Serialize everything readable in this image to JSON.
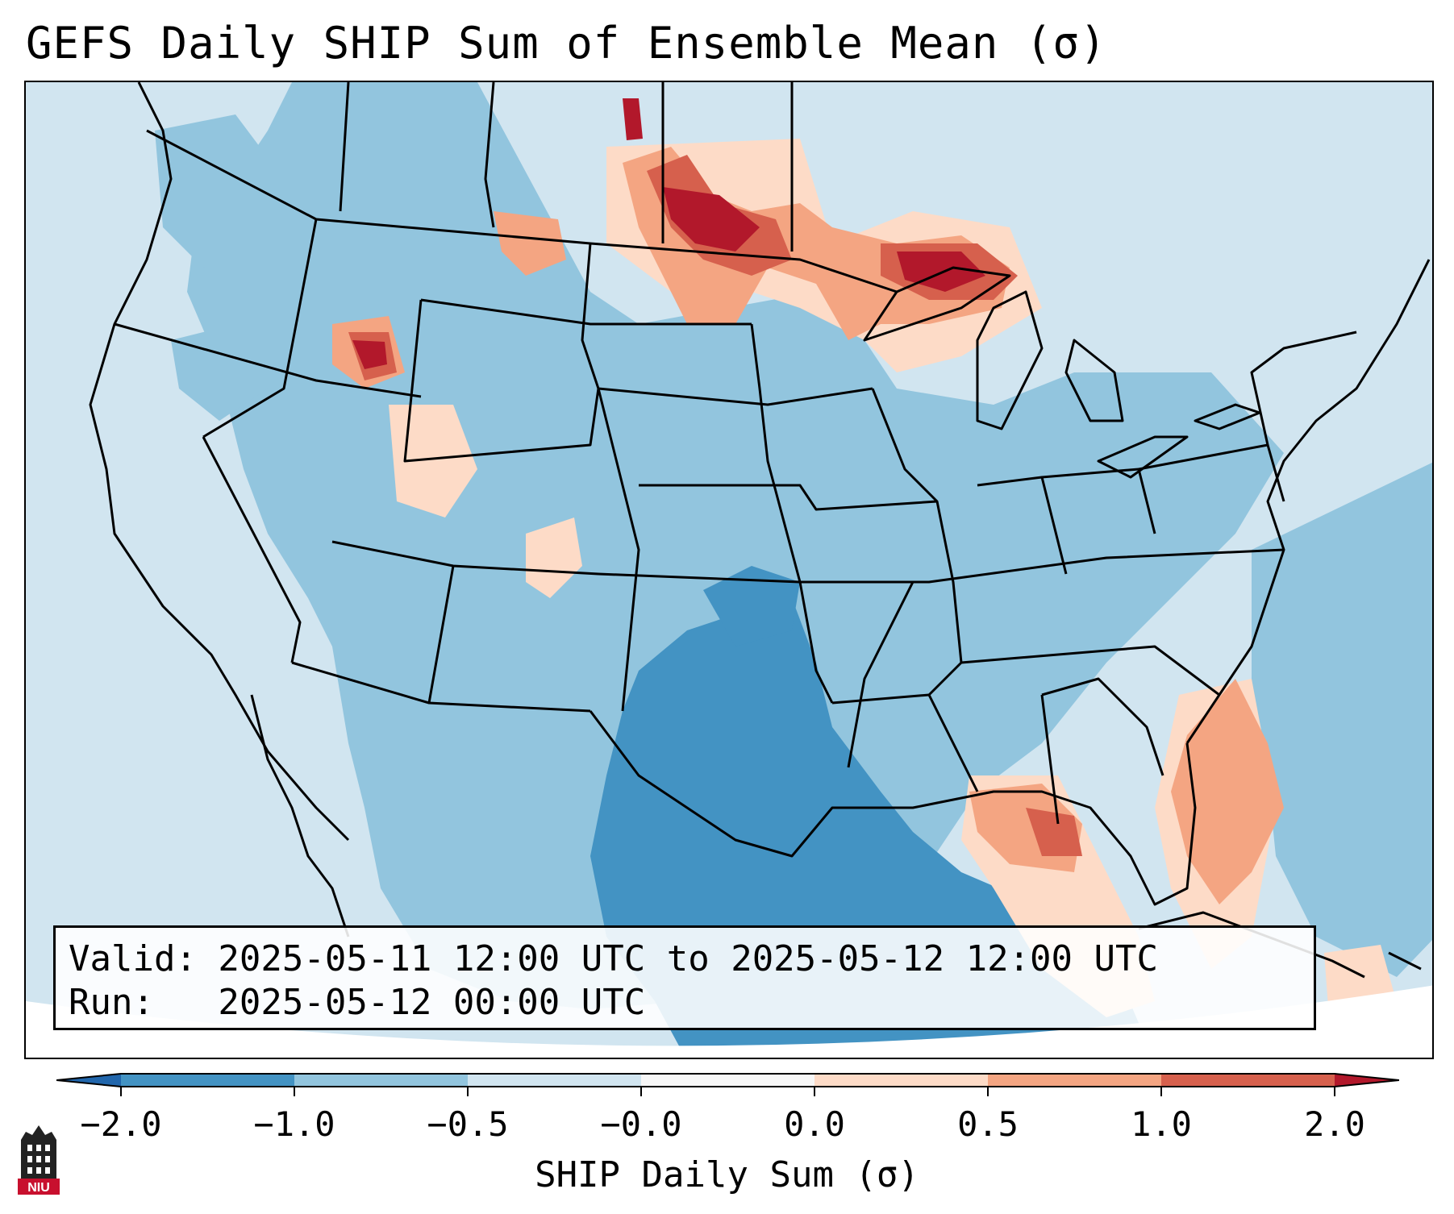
{
  "title": "GEFS Daily SHIP Sum of Ensemble Mean (σ)",
  "info": {
    "valid_line": "Valid: 2025-05-11 12:00 UTC to 2025-05-12 12:00 UTC",
    "run_line": "Run:   2025-05-12 00:00 UTC"
  },
  "colorbar": {
    "label": "SHIP Daily Sum (σ)",
    "ticks": [
      "−2.0",
      "−1.0",
      "−0.5",
      "−0.0",
      "0.0",
      "0.5",
      "1.0",
      "2.0"
    ],
    "colors": [
      "#4393c3",
      "#92c5de",
      "#d1e5f0",
      "#f7f7f7",
      "#fddbc7",
      "#f4a582",
      "#d6604d"
    ],
    "extend_low_color": "#2166ac",
    "extend_high_color": "#b2182b"
  },
  "logo": {
    "text": "NIU",
    "icon": "niu-tower-logo-icon"
  }
}
